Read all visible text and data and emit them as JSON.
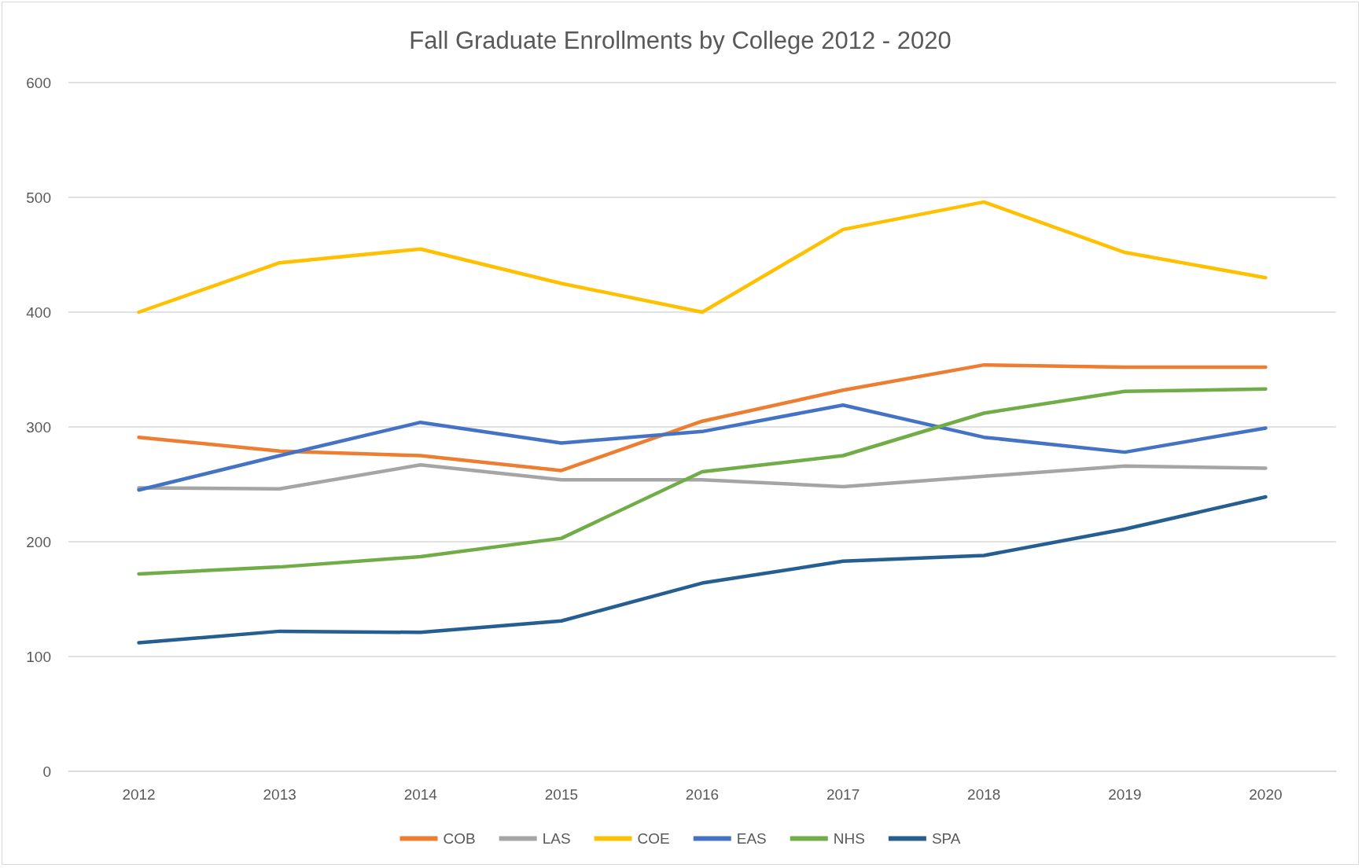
{
  "chart_data": {
    "type": "line",
    "title": "Fall Graduate Enrollments by College 2012 - 2020",
    "categories": [
      "2012",
      "2013",
      "2014",
      "2015",
      "2016",
      "2017",
      "2018",
      "2019",
      "2020"
    ],
    "series": [
      {
        "name": "COB",
        "color": "#ed7d31",
        "values": [
          291,
          279,
          275,
          262,
          305,
          332,
          354,
          352,
          352
        ]
      },
      {
        "name": "LAS",
        "color": "#a5a5a5",
        "values": [
          247,
          246,
          267,
          254,
          254,
          248,
          257,
          266,
          264
        ]
      },
      {
        "name": "COE",
        "color": "#ffc000",
        "values": [
          400,
          443,
          455,
          425,
          400,
          472,
          496,
          452,
          430
        ]
      },
      {
        "name": "EAS",
        "color": "#4472c4",
        "values": [
          245,
          275,
          304,
          286,
          296,
          319,
          291,
          278,
          299
        ]
      },
      {
        "name": "NHS",
        "color": "#70ad47",
        "values": [
          172,
          178,
          187,
          203,
          261,
          275,
          312,
          331,
          333
        ]
      },
      {
        "name": "SPA",
        "color": "#255e91",
        "values": [
          112,
          122,
          121,
          131,
          164,
          183,
          188,
          211,
          239
        ]
      }
    ],
    "ylim": [
      0,
      600
    ],
    "yticks": [
      0,
      100,
      200,
      300,
      400,
      500,
      600
    ],
    "grid": "y",
    "legend": "bottom",
    "marker": "none",
    "line_style": "solid"
  }
}
